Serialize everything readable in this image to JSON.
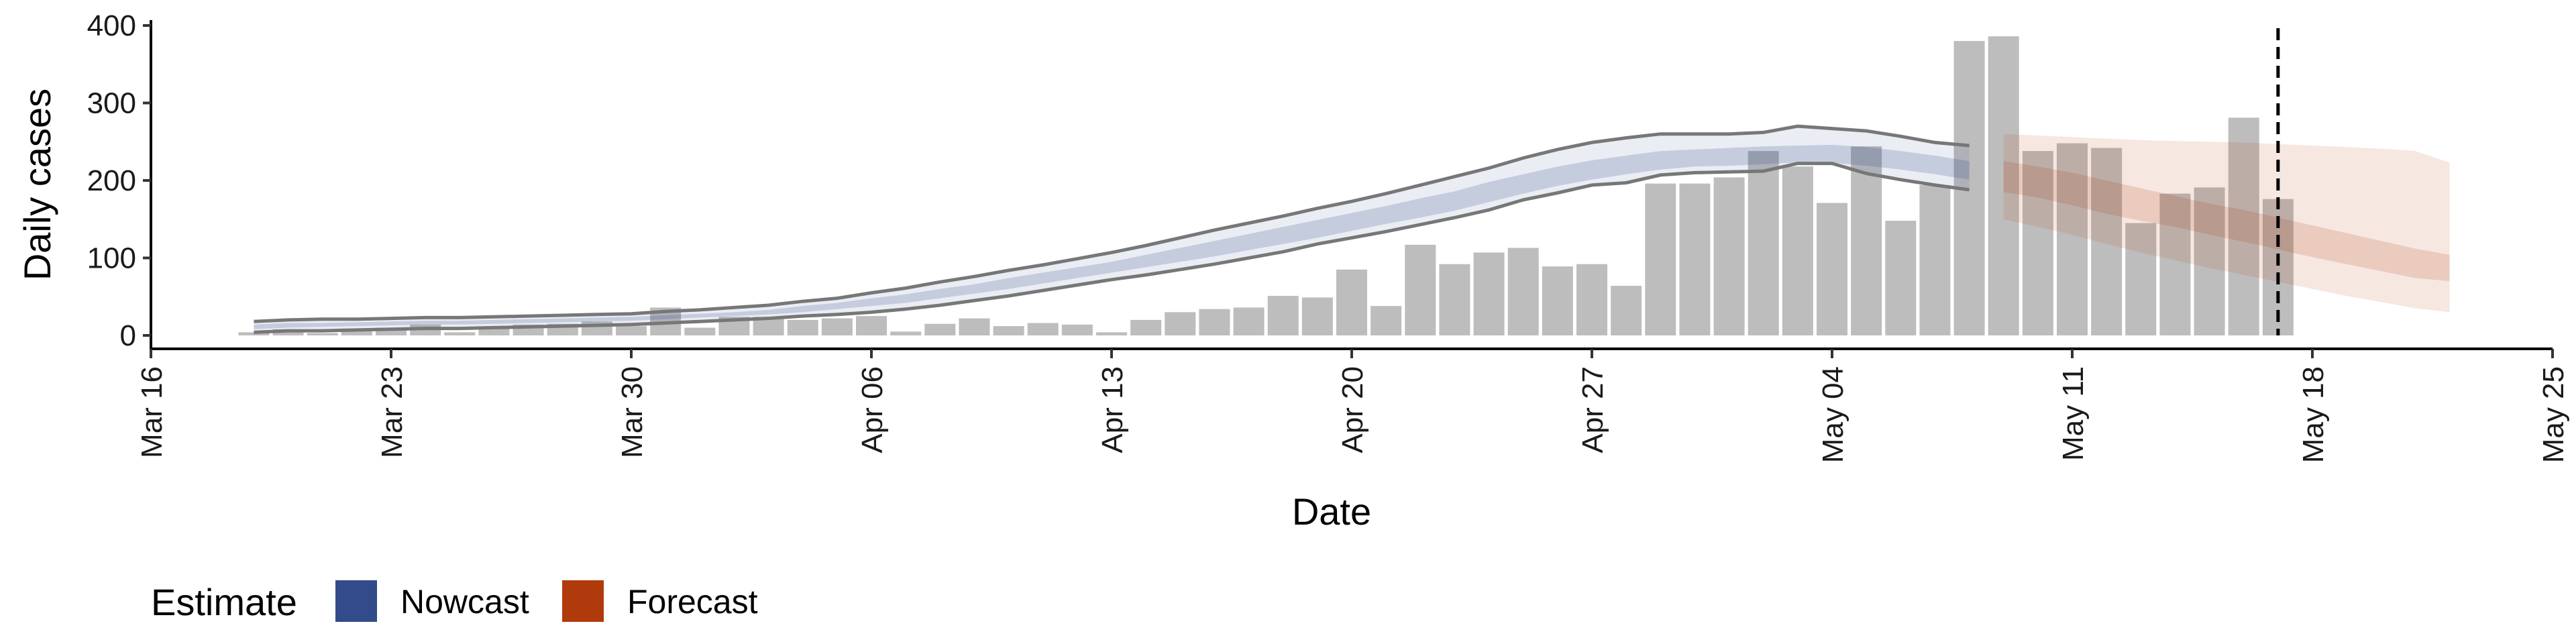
{
  "chart_data": {
    "type": "bar",
    "xlabel": "Date",
    "ylabel": "Daily cases",
    "xlim": [
      "2020-03-16",
      "2020-05-25"
    ],
    "ylim": [
      0,
      400
    ],
    "y_ticks": [
      0,
      100,
      200,
      300,
      400
    ],
    "x_ticks": [
      {
        "date": "2020-03-16",
        "label": "Mar 16"
      },
      {
        "date": "2020-03-23",
        "label": "Mar 23"
      },
      {
        "date": "2020-03-30",
        "label": "Mar 30"
      },
      {
        "date": "2020-04-06",
        "label": "Apr 06"
      },
      {
        "date": "2020-04-13",
        "label": "Apr 13"
      },
      {
        "date": "2020-04-20",
        "label": "Apr 20"
      },
      {
        "date": "2020-04-27",
        "label": "Apr 27"
      },
      {
        "date": "2020-05-04",
        "label": "May 04"
      },
      {
        "date": "2020-05-11",
        "label": "May 11"
      },
      {
        "date": "2020-05-18",
        "label": "May 18"
      },
      {
        "date": "2020-05-25",
        "label": "May 25"
      }
    ],
    "grid": false,
    "legend": {
      "title": "Estimate",
      "position": "bottom-left",
      "entries": [
        {
          "label": "Nowcast",
          "color": "#344b8b"
        },
        {
          "label": "Forecast",
          "color": "#b13a0c"
        }
      ]
    },
    "vline": {
      "date": "2020-05-17",
      "style": "dashed",
      "color": "#000000"
    },
    "bar_color": "#bdbdbd",
    "bars": {
      "dates": [
        "2020-03-19",
        "2020-03-20",
        "2020-03-21",
        "2020-03-22",
        "2020-03-23",
        "2020-03-24",
        "2020-03-25",
        "2020-03-26",
        "2020-03-27",
        "2020-03-28",
        "2020-03-29",
        "2020-03-30",
        "2020-03-31",
        "2020-04-01",
        "2020-04-02",
        "2020-04-03",
        "2020-04-04",
        "2020-04-05",
        "2020-04-06",
        "2020-04-07",
        "2020-04-08",
        "2020-04-09",
        "2020-04-10",
        "2020-04-11",
        "2020-04-12",
        "2020-04-13",
        "2020-04-14",
        "2020-04-15",
        "2020-04-16",
        "2020-04-17",
        "2020-04-18",
        "2020-04-19",
        "2020-04-20",
        "2020-04-21",
        "2020-04-22",
        "2020-04-23",
        "2020-04-24",
        "2020-04-25",
        "2020-04-26",
        "2020-04-27",
        "2020-04-28",
        "2020-04-29",
        "2020-04-30",
        "2020-05-01",
        "2020-05-02",
        "2020-05-03",
        "2020-05-04",
        "2020-05-05",
        "2020-05-06",
        "2020-05-07",
        "2020-05-08",
        "2020-05-09",
        "2020-05-10",
        "2020-05-11",
        "2020-05-12",
        "2020-05-13",
        "2020-05-14",
        "2020-05-15",
        "2020-05-16",
        "2020-05-17"
      ],
      "values": [
        4,
        8,
        3,
        9,
        10,
        14,
        4,
        9,
        14,
        15,
        18,
        12,
        36,
        10,
        24,
        24,
        20,
        22,
        25,
        5,
        15,
        22,
        12,
        16,
        14,
        4,
        20,
        30,
        34,
        36,
        51,
        49,
        85,
        38,
        117,
        92,
        107,
        113,
        89,
        92,
        64,
        196,
        196,
        204,
        238,
        218,
        171,
        244,
        148,
        194,
        380,
        386,
        238,
        248,
        242,
        145,
        183,
        191,
        281,
        176
      ]
    },
    "series": [
      {
        "name": "Nowcast",
        "color": "#344b8b",
        "dates": [
          "2020-03-19",
          "2020-03-20",
          "2020-03-21",
          "2020-03-22",
          "2020-03-23",
          "2020-03-24",
          "2020-03-25",
          "2020-03-26",
          "2020-03-27",
          "2020-03-28",
          "2020-03-29",
          "2020-03-30",
          "2020-03-31",
          "2020-04-01",
          "2020-04-02",
          "2020-04-03",
          "2020-04-04",
          "2020-04-05",
          "2020-04-06",
          "2020-04-07",
          "2020-04-08",
          "2020-04-09",
          "2020-04-10",
          "2020-04-11",
          "2020-04-12",
          "2020-04-13",
          "2020-04-14",
          "2020-04-15",
          "2020-04-16",
          "2020-04-17",
          "2020-04-18",
          "2020-04-19",
          "2020-04-20",
          "2020-04-21",
          "2020-04-22",
          "2020-04-23",
          "2020-04-24",
          "2020-04-25",
          "2020-04-26",
          "2020-04-27",
          "2020-04-28",
          "2020-04-29",
          "2020-04-30",
          "2020-05-01",
          "2020-05-02",
          "2020-05-03",
          "2020-05-04",
          "2020-05-05",
          "2020-05-06",
          "2020-05-07",
          "2020-05-08"
        ],
        "median": [
          11,
          13,
          13,
          14,
          15,
          16,
          16,
          17,
          18,
          19,
          20,
          21,
          23,
          25,
          27,
          30,
          34,
          38,
          43,
          48,
          54,
          60,
          67,
          74,
          81,
          88,
          96,
          104,
          112,
          120,
          128,
          137,
          146,
          155,
          164,
          173,
          185,
          195,
          205,
          213,
          220,
          226,
          229,
          230,
          232,
          234,
          234,
          231,
          226,
          220,
          213
        ],
        "lower_50": [
          8,
          10,
          11,
          12,
          13,
          14,
          14,
          15,
          16,
          17,
          18,
          19,
          21,
          23,
          25,
          27,
          30,
          34,
          38,
          42,
          48,
          54,
          60,
          67,
          74,
          81,
          88,
          95,
          102,
          110,
          118,
          126,
          135,
          144,
          152,
          161,
          172,
          183,
          193,
          201,
          208,
          214,
          218,
          219,
          221,
          223,
          223,
          219,
          214,
          208,
          201
        ],
        "upper_50": [
          14,
          16,
          16,
          17,
          18,
          19,
          19,
          20,
          21,
          22,
          23,
          24,
          26,
          28,
          30,
          33,
          38,
          42,
          48,
          53,
          60,
          66,
          74,
          81,
          88,
          95,
          104,
          113,
          122,
          131,
          140,
          149,
          158,
          167,
          177,
          186,
          198,
          208,
          218,
          226,
          232,
          238,
          240,
          242,
          244,
          245,
          246,
          243,
          238,
          232,
          225
        ],
        "lower_90": [
          4,
          6,
          6,
          7,
          8,
          9,
          9,
          10,
          11,
          12,
          13,
          14,
          16,
          18,
          20,
          22,
          25,
          27,
          30,
          34,
          39,
          45,
          51,
          58,
          65,
          72,
          78,
          85,
          92,
          100,
          108,
          118,
          126,
          134,
          143,
          152,
          162,
          175,
          184,
          194,
          197,
          207,
          210,
          211,
          212,
          222,
          222,
          209,
          201,
          194,
          188
        ],
        "upper_90": [
          18,
          20,
          21,
          21,
          22,
          23,
          23,
          24,
          25,
          26,
          27,
          28,
          31,
          33,
          36,
          39,
          44,
          48,
          55,
          61,
          69,
          76,
          84,
          91,
          99,
          107,
          116,
          126,
          136,
          145,
          154,
          164,
          173,
          183,
          194,
          205,
          216,
          229,
          240,
          249,
          255,
          260,
          260,
          260,
          262,
          270,
          267,
          264,
          257,
          249,
          245
        ]
      },
      {
        "name": "Forecast",
        "color": "#b13a0c",
        "dates": [
          "2020-05-09",
          "2020-05-10",
          "2020-05-11",
          "2020-05-12",
          "2020-05-13",
          "2020-05-14",
          "2020-05-15",
          "2020-05-16",
          "2020-05-17",
          "2020-05-18",
          "2020-05-19",
          "2020-05-20",
          "2020-05-21",
          "2020-05-22"
        ],
        "median": [
          205,
          198,
          188,
          177,
          168,
          160,
          150,
          141,
          131,
          121,
          112,
          103,
          94,
          86
        ],
        "lower_50": [
          185,
          178,
          168,
          157,
          148,
          140,
          130,
          121,
          111,
          101,
          92,
          83,
          74,
          70
        ],
        "upper_50": [
          225,
          218,
          210,
          200,
          190,
          180,
          170,
          162,
          152,
          142,
          132,
          122,
          112,
          104
        ],
        "lower_90": [
          150,
          140,
          130,
          118,
          107,
          97,
          87,
          78,
          69,
          60,
          51,
          43,
          35,
          30
        ],
        "upper_90": [
          260,
          258,
          256,
          254,
          252,
          251,
          250,
          249,
          247,
          245,
          243,
          241,
          238,
          223
        ]
      }
    ]
  }
}
